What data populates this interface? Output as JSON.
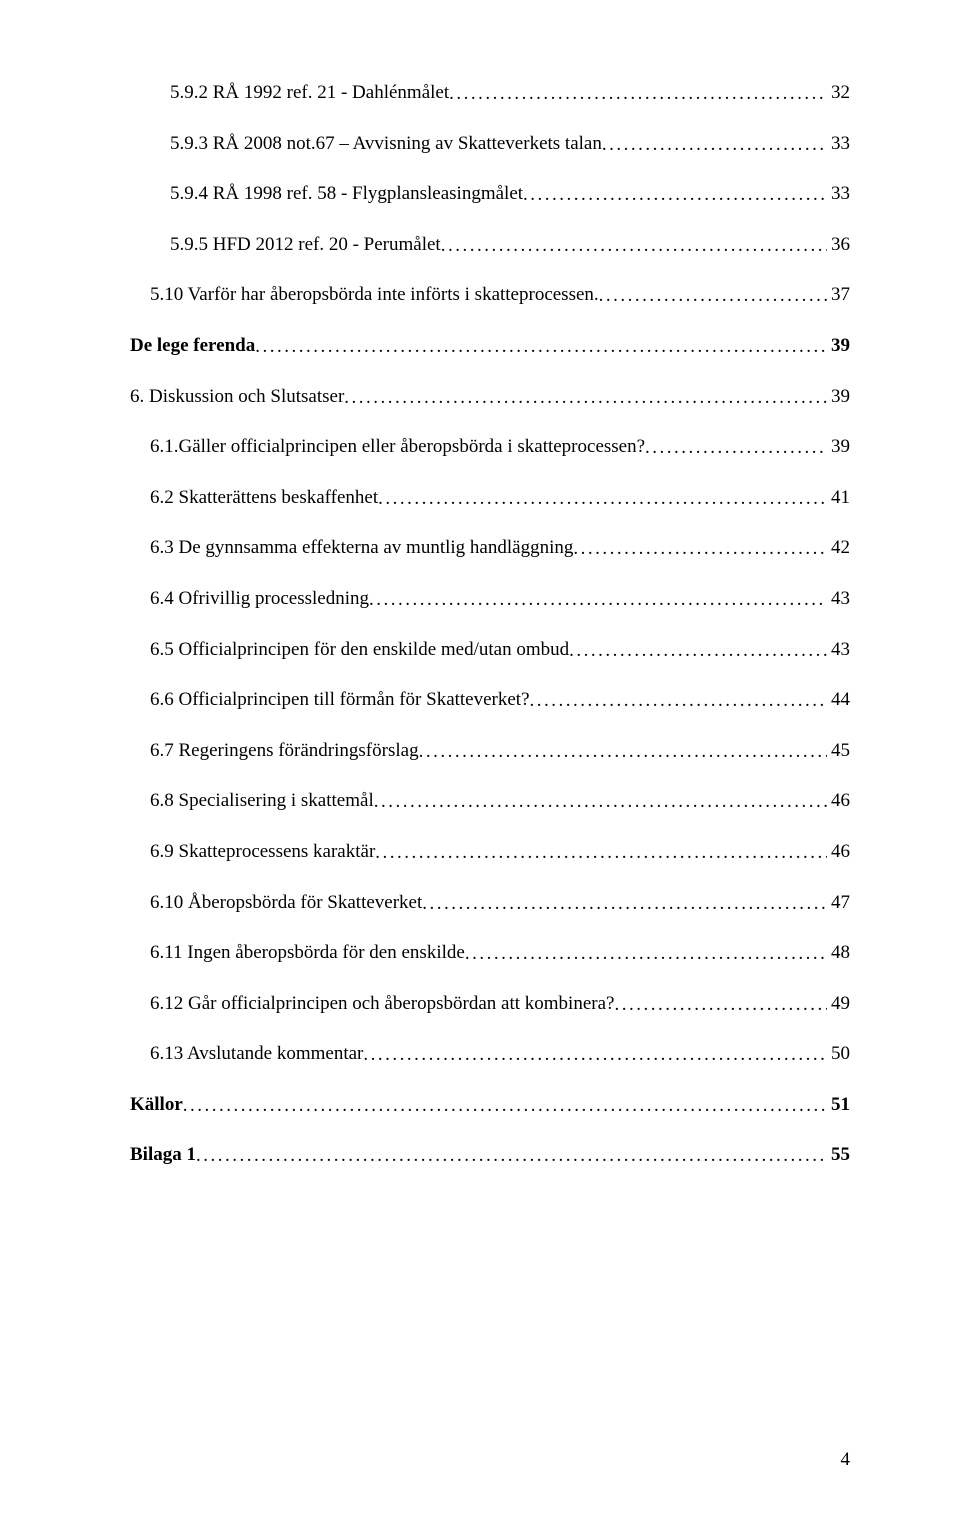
{
  "toc": [
    {
      "title": "5.9.2 RÅ 1992 ref. 21 - Dahlénmålet",
      "page": "32",
      "level": "level-3",
      "bold": false
    },
    {
      "title": "5.9.3 RÅ 2008 not.67 – Avvisning av Skatteverkets talan",
      "page": "33",
      "level": "level-3",
      "bold": false
    },
    {
      "title": "5.9.4 RÅ 1998 ref. 58 - Flygplansleasingmålet",
      "page": "33",
      "level": "level-3",
      "bold": false
    },
    {
      "title": "5.9.5 HFD 2012 ref. 20 - Perumålet",
      "page": "36",
      "level": "level-3",
      "bold": false
    },
    {
      "title": "5.10 Varför har åberopsbörda inte införts i skatteprocessen.",
      "page": "37",
      "level": "level-2",
      "bold": false
    },
    {
      "title": "De lege ferenda",
      "page": "39",
      "level": "level-heading",
      "bold": true
    },
    {
      "title": "6. Diskussion och Slutsatser",
      "page": "39",
      "level": "level-heading",
      "bold": false
    },
    {
      "title": "6.1.Gäller officialprincipen eller åberopsbörda i skatteprocessen?",
      "page": "39",
      "level": "level-2",
      "bold": false
    },
    {
      "title": "6.2 Skatterättens beskaffenhet",
      "page": "41",
      "level": "level-2",
      "bold": false
    },
    {
      "title": "6.3 De gynnsamma effekterna av muntlig handläggning",
      "page": "42",
      "level": "level-2",
      "bold": false
    },
    {
      "title": "6.4 Ofrivillig processledning",
      "page": "43",
      "level": "level-2",
      "bold": false
    },
    {
      "title": "6.5 Officialprincipen för den enskilde med/utan ombud",
      "page": "43",
      "level": "level-2",
      "bold": false
    },
    {
      "title": "6.6 Officialprincipen till förmån för Skatteverket?",
      "page": "44",
      "level": "level-2",
      "bold": false
    },
    {
      "title": "6.7 Regeringens förändringsförslag",
      "page": "45",
      "level": "level-2",
      "bold": false
    },
    {
      "title": "6.8 Specialisering i skattemål",
      "page": "46",
      "level": "level-2",
      "bold": false
    },
    {
      "title": "6.9 Skatteprocessens karaktär",
      "page": "46",
      "level": "level-2",
      "bold": false
    },
    {
      "title": "6.10 Åberopsbörda för Skatteverket",
      "page": "47",
      "level": "level-2",
      "bold": false
    },
    {
      "title": "6.11 Ingen åberopsbörda för den enskilde",
      "page": "48",
      "level": "level-2",
      "bold": false
    },
    {
      "title": "6.12 Går officialprincipen och åberopsbördan att kombinera?",
      "page": "49",
      "level": "level-2",
      "bold": false
    },
    {
      "title": "6.13 Avslutande kommentar",
      "page": "50",
      "level": "level-2",
      "bold": false
    },
    {
      "title": "Källor",
      "page": "51",
      "level": "level-heading",
      "bold": true
    },
    {
      "title": "Bilaga 1",
      "page": "55",
      "level": "level-heading",
      "bold": true
    }
  ],
  "page_number": "4"
}
